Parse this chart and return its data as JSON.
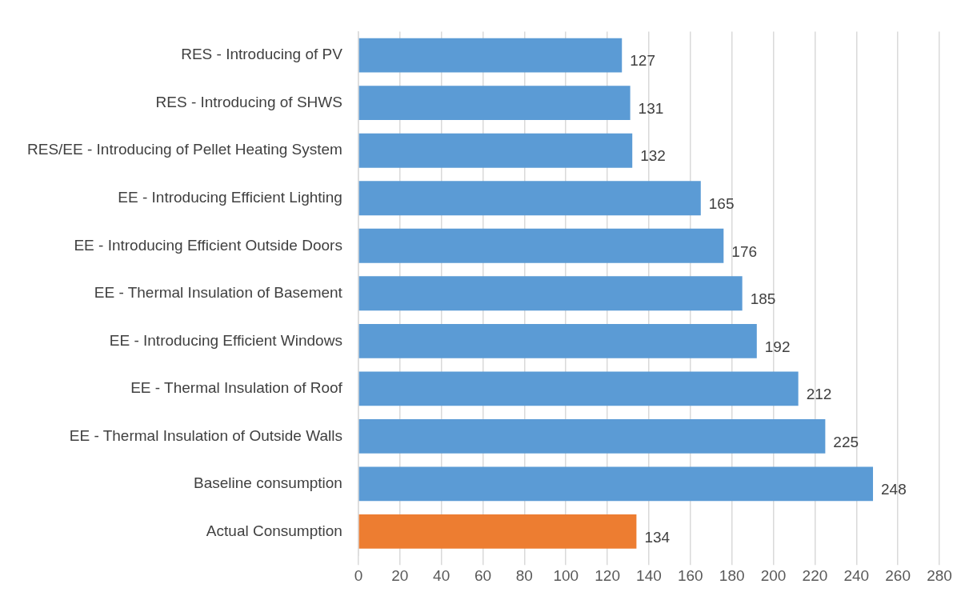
{
  "chart_data": {
    "type": "bar",
    "orientation": "horizontal",
    "categories": [
      "RES - Introducing of PV",
      "RES - Introducing of SHWS",
      "RES/EE - Introducing of Pellet Heating System",
      "EE - Introducing Efficient Lighting",
      "EE - Introducing Efficient Outside Doors",
      "EE - Thermal Insulation of Basement",
      "EE - Introducing Efficient Windows",
      "EE - Thermal Insulation of Roof",
      "EE - Thermal Insulation of Outside Walls",
      "Baseline consumption",
      "Actual Consumption"
    ],
    "values": [
      127,
      131,
      132,
      165,
      176,
      185,
      192,
      212,
      225,
      248,
      134
    ],
    "colors": [
      "#5b9bd5",
      "#5b9bd5",
      "#5b9bd5",
      "#5b9bd5",
      "#5b9bd5",
      "#5b9bd5",
      "#5b9bd5",
      "#5b9bd5",
      "#5b9bd5",
      "#5b9bd5",
      "#ed7d31"
    ],
    "xlim": [
      0,
      280
    ],
    "xticks": [
      0,
      20,
      40,
      60,
      80,
      100,
      120,
      140,
      160,
      180,
      200,
      220,
      240,
      260,
      280
    ],
    "grid": "x",
    "data_labels": true,
    "legend": false
  }
}
